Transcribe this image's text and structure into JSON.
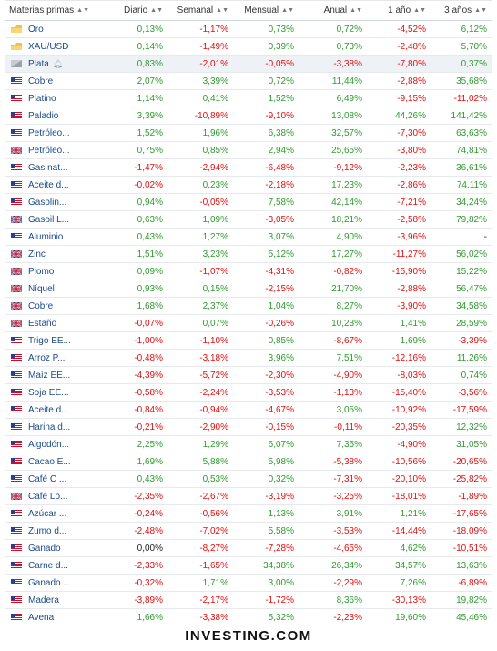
{
  "colors": {
    "positive": "#2e9b2e",
    "negative": "#e20f0f",
    "link": "#1a4a8a"
  },
  "headers": [
    "Materias primas",
    "Diario",
    "Semanal",
    "Mensual",
    "Anual",
    "1 año",
    "3 años"
  ],
  "rows": [
    {
      "flag": "gold-icon",
      "name": "Oro",
      "d": "0,13%",
      "w": "-1,17%",
      "m": "0,73%",
      "y": "0,72%",
      "y1": "-4,52%",
      "y3": "6,12%"
    },
    {
      "flag": "gold-icon",
      "name": "XAU/USD",
      "d": "0,14%",
      "w": "-1,49%",
      "m": "0,39%",
      "y": "0,73%",
      "y1": "-2,48%",
      "y3": "5,70%"
    },
    {
      "flag": "silver-icon",
      "name": "Plata",
      "bell": true,
      "d": "0,83%",
      "w": "-2,01%",
      "m": "-0,05%",
      "y": "-3,38%",
      "y1": "-7,80%",
      "y3": "0,37%"
    },
    {
      "flag": "us-flag-icon",
      "name": "Cobre",
      "d": "2,07%",
      "w": "3,39%",
      "m": "0,72%",
      "y": "11,44%",
      "y1": "-2,88%",
      "y3": "35,68%"
    },
    {
      "flag": "us-flag-icon",
      "name": "Platino",
      "d": "1,14%",
      "w": "0,41%",
      "m": "1,52%",
      "y": "6,49%",
      "y1": "-9,15%",
      "y3": "-11,02%"
    },
    {
      "flag": "us-flag-icon",
      "name": "Paladio",
      "d": "3,39%",
      "w": "-10,89%",
      "m": "-9,10%",
      "y": "13,08%",
      "y1": "44,26%",
      "y3": "141,42%"
    },
    {
      "flag": "us-flag-icon",
      "name": "Petróleo...",
      "d": "1,52%",
      "w": "1,96%",
      "m": "6,38%",
      "y": "32,57%",
      "y1": "-7,30%",
      "y3": "63,63%"
    },
    {
      "flag": "uk-flag-icon",
      "name": "Petróleo...",
      "d": "0,75%",
      "w": "0,85%",
      "m": "2,94%",
      "y": "25,65%",
      "y1": "-3,80%",
      "y3": "74,81%"
    },
    {
      "flag": "us-flag-icon",
      "name": "Gas nat...",
      "d": "-1,47%",
      "w": "-2,94%",
      "m": "-6,48%",
      "y": "-9,12%",
      "y1": "-2,23%",
      "y3": "36,61%"
    },
    {
      "flag": "us-flag-icon",
      "name": "Aceite d...",
      "d": "-0,02%",
      "w": "0,23%",
      "m": "-2,18%",
      "y": "17,23%",
      "y1": "-2,86%",
      "y3": "74,11%"
    },
    {
      "flag": "us-flag-icon",
      "name": "Gasolin...",
      "d": "0,94%",
      "w": "-0,05%",
      "m": "7,58%",
      "y": "42,14%",
      "y1": "-7,21%",
      "y3": "34,24%"
    },
    {
      "flag": "uk-flag-icon",
      "name": "Gasoil L...",
      "d": "0,63%",
      "w": "1,09%",
      "m": "-3,05%",
      "y": "18,21%",
      "y1": "-2,58%",
      "y3": "79,82%"
    },
    {
      "flag": "us-flag-icon",
      "name": "Aluminio",
      "d": "0,43%",
      "w": "1,27%",
      "m": "3,07%",
      "y": "4,90%",
      "y1": "-3,96%",
      "y3": "-"
    },
    {
      "flag": "uk-flag-icon",
      "name": "Zinc",
      "d": "1,51%",
      "w": "3,23%",
      "m": "5,12%",
      "y": "17,27%",
      "y1": "-11,27%",
      "y3": "56,02%"
    },
    {
      "flag": "uk-flag-icon",
      "name": "Plomo",
      "d": "0,09%",
      "w": "-1,07%",
      "m": "-4,31%",
      "y": "-0,82%",
      "y1": "-15,90%",
      "y3": "15,22%"
    },
    {
      "flag": "uk-flag-icon",
      "name": "Níquel",
      "d": "0,93%",
      "w": "0,15%",
      "m": "-2,15%",
      "y": "21,70%",
      "y1": "-2,88%",
      "y3": "56,47%"
    },
    {
      "flag": "uk-flag-icon",
      "name": "Cobre",
      "d": "1,68%",
      "w": "2,37%",
      "m": "1,04%",
      "y": "8,27%",
      "y1": "-3,90%",
      "y3": "34,58%"
    },
    {
      "flag": "uk-flag-icon",
      "name": "Estaño",
      "d": "-0,07%",
      "w": "0,07%",
      "m": "-0,26%",
      "y": "10,23%",
      "y1": "1,41%",
      "y3": "28,59%"
    },
    {
      "flag": "us-flag-icon",
      "name": "Trigo EE...",
      "d": "-1,00%",
      "w": "-1,10%",
      "m": "0,85%",
      "y": "-8,67%",
      "y1": "1,69%",
      "y3": "-3,39%"
    },
    {
      "flag": "us-flag-icon",
      "name": "Arroz P...",
      "d": "-0,48%",
      "w": "-3,18%",
      "m": "3,96%",
      "y": "7,51%",
      "y1": "-12,16%",
      "y3": "11,26%"
    },
    {
      "flag": "us-flag-icon",
      "name": "Maíz EE...",
      "d": "-4,39%",
      "w": "-5,72%",
      "m": "-2,30%",
      "y": "-4,90%",
      "y1": "-8,03%",
      "y3": "0,74%"
    },
    {
      "flag": "us-flag-icon",
      "name": "Soja EE...",
      "d": "-0,58%",
      "w": "-2,24%",
      "m": "-3,53%",
      "y": "-1,13%",
      "y1": "-15,40%",
      "y3": "-3,56%"
    },
    {
      "flag": "us-flag-icon",
      "name": "Aceite d...",
      "d": "-0,84%",
      "w": "-0,94%",
      "m": "-4,67%",
      "y": "3,05%",
      "y1": "-10,92%",
      "y3": "-17,59%"
    },
    {
      "flag": "us-flag-icon",
      "name": "Harina d...",
      "d": "-0,21%",
      "w": "-2,90%",
      "m": "-0,15%",
      "y": "-0,11%",
      "y1": "-20,35%",
      "y3": "12,32%"
    },
    {
      "flag": "us-flag-icon",
      "name": "Algodón...",
      "d": "2,25%",
      "w": "1,29%",
      "m": "6,07%",
      "y": "7,35%",
      "y1": "-4,90%",
      "y3": "31,05%"
    },
    {
      "flag": "us-flag-icon",
      "name": "Cacao E...",
      "d": "1,69%",
      "w": "5,88%",
      "m": "5,98%",
      "y": "-5,38%",
      "y1": "-10,56%",
      "y3": "-20,65%"
    },
    {
      "flag": "us-flag-icon",
      "name": "Café C ...",
      "d": "0,43%",
      "w": "0,53%",
      "m": "0,32%",
      "y": "-7,31%",
      "y1": "-20,10%",
      "y3": "-25,82%"
    },
    {
      "flag": "uk-flag-icon",
      "name": "Café Lo...",
      "d": "-2,35%",
      "w": "-2,67%",
      "m": "-3,19%",
      "y": "-3,25%",
      "y1": "-18,01%",
      "y3": "-1,89%"
    },
    {
      "flag": "us-flag-icon",
      "name": "Azúcar ...",
      "d": "-0,24%",
      "w": "-0,56%",
      "m": "1,13%",
      "y": "3,91%",
      "y1": "1,21%",
      "y3": "-17,65%"
    },
    {
      "flag": "us-flag-icon",
      "name": "Zumo d...",
      "d": "-2,48%",
      "w": "-7,02%",
      "m": "5,58%",
      "y": "-3,53%",
      "y1": "-14,44%",
      "y3": "-18,09%"
    },
    {
      "flag": "us-flag-icon",
      "name": "Ganado",
      "d": "0,00%",
      "w": "-8,27%",
      "m": "-7,28%",
      "y": "-4,65%",
      "y1": "4,62%",
      "y3": "-10,51%"
    },
    {
      "flag": "us-flag-icon",
      "name": "Carne d...",
      "d": "-2,33%",
      "w": "-1,65%",
      "m": "34,38%",
      "y": "26,34%",
      "y1": "34,57%",
      "y3": "13,63%"
    },
    {
      "flag": "us-flag-icon",
      "name": "Ganado ...",
      "d": "-0,32%",
      "w": "1,71%",
      "m": "3,00%",
      "y": "-2,29%",
      "y1": "7,26%",
      "y3": "-6,89%"
    },
    {
      "flag": "us-flag-icon",
      "name": "Madera",
      "d": "-3,89%",
      "w": "-2,17%",
      "m": "-1,72%",
      "y": "8,36%",
      "y1": "-30,13%",
      "y3": "19,82%"
    },
    {
      "flag": "us-flag-icon",
      "name": "Avena",
      "d": "1,66%",
      "w": "-3,38%",
      "m": "5,32%",
      "y": "-2,23%",
      "y1": "19,60%",
      "y3": "45,46%"
    }
  ],
  "footer": "INVESTING.COM"
}
